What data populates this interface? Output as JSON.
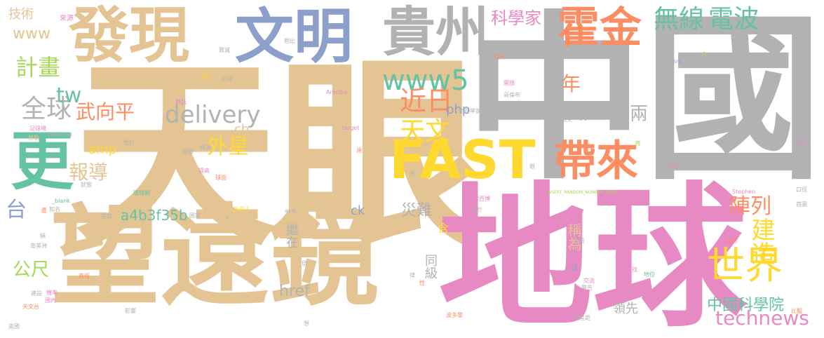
{
  "cloud": {
    "words": [
      {
        "text": "中國",
        "weight": 100,
        "color": "#b2b2b2"
      },
      {
        "text": "天眼",
        "weight": 96,
        "color": "#e5c494"
      },
      {
        "text": "地球",
        "weight": 78,
        "color": "#e78ac3"
      },
      {
        "text": "望遠鏡",
        "weight": 70,
        "color": "#e5c494"
      },
      {
        "text": "發現",
        "weight": 52,
        "color": "#e5c494"
      },
      {
        "text": "文明",
        "weight": 48,
        "color": "#8da0cb"
      },
      {
        "text": "貴州",
        "weight": 44,
        "color": "#b2b2b2"
      },
      {
        "text": "FAST",
        "weight": 40,
        "color": "#ffd92f"
      },
      {
        "text": "更",
        "weight": 42,
        "color": "#66c2a5"
      },
      {
        "text": "霍金",
        "weight": 30,
        "color": "#fc8d62"
      },
      {
        "text": "帶來",
        "weight": 28,
        "color": "#fc8d62"
      },
      {
        "text": "世界",
        "weight": 24,
        "color": "#ffd92f"
      },
      {
        "text": "無線",
        "weight": 18,
        "color": "#66c2a5"
      },
      {
        "text": "電波",
        "weight": 18,
        "color": "#66c2a5"
      },
      {
        "text": "www5",
        "weight": 16,
        "color": "#66c2a5"
      },
      {
        "text": "delivery",
        "weight": 16,
        "color": "#b2b2b2"
      },
      {
        "text": "近日",
        "weight": 16,
        "color": "#fc8d62"
      },
      {
        "text": "天文",
        "weight": 15,
        "color": "#ffd92f"
      },
      {
        "text": "全球",
        "weight": 15,
        "color": "#b2b2b2"
      },
      {
        "text": "technews",
        "weight": 14,
        "color": "#e78ac3"
      },
      {
        "text": "建造",
        "weight": 14,
        "color": "#ffd92f"
      },
      {
        "text": "陣列",
        "weight": 12,
        "color": "#fc8d62"
      },
      {
        "text": "外星",
        "weight": 12,
        "color": "#ffd92f"
      },
      {
        "text": "年",
        "weight": 12,
        "color": "#fc8d62"
      },
      {
        "text": "科學家",
        "weight": 12,
        "color": "#e78ac3"
      },
      {
        "text": "計畫",
        "weight": 12,
        "color": "#a6d854"
      },
      {
        "text": "www",
        "weight": 11,
        "color": "#e5c494"
      },
      {
        "text": "tw",
        "weight": 12,
        "color": "#66c2a5"
      },
      {
        "text": "武向平",
        "weight": 12,
        "color": "#fc8d62"
      },
      {
        "text": "報導",
        "weight": 11,
        "color": "#e5c494"
      },
      {
        "text": "公尺",
        "weight": 11,
        "color": "#a6d854"
      },
      {
        "text": "台",
        "weight": 12,
        "color": "#8da0cb"
      },
      {
        "text": "技術",
        "weight": 9,
        "color": "#e5c494"
      },
      {
        "text": "中國科學院",
        "weight": 10,
        "color": "#66c2a5"
      },
      {
        "text": "兩",
        "weight": 11,
        "color": "#b2b2b2"
      },
      {
        "text": "稱為",
        "weight": 9,
        "color": "#e5c494"
      },
      {
        "text": "災難",
        "weight": 10,
        "color": "#b2b2b2"
      },
      {
        "text": "a4b3f35b",
        "weight": 10,
        "color": "#66c2a5"
      },
      {
        "text": "href",
        "weight": 10,
        "color": "#b2b2b2"
      },
      {
        "text": "php",
        "weight": 9,
        "color": "#8da0cb"
      },
      {
        "text": "n",
        "weight": 9,
        "color": "#b2b2b2"
      },
      {
        "text": "cb",
        "weight": 9,
        "color": "#e5c494"
      },
      {
        "text": "amp",
        "weight": 9,
        "color": "#ffd92f"
      },
      {
        "text": "ck",
        "weight": 9,
        "color": "#8da0cb"
      },
      {
        "text": "同級",
        "weight": 9,
        "color": "#b2b2b2"
      },
      {
        "text": "領先",
        "weight": 9,
        "color": "#b2b2b2"
      },
      {
        "text": "繼在",
        "weight": 8,
        "color": "#b2b2b2"
      },
      {
        "text": "含",
        "weight": 8,
        "color": "#ffd92f"
      },
      {
        "text": "a",
        "weight": 8,
        "color": "#8da0cb"
      },
      {
        "text": "來源",
        "weight": 4,
        "color": "#e78ac3"
      },
      {
        "text": "致滅",
        "weight": 4,
        "color": "#b2b2b2"
      },
      {
        "text": "相比",
        "weight": 4,
        "color": "#b2b2b2"
      },
      {
        "text": "少年",
        "weight": 4,
        "color": "#b2b2b2"
      },
      {
        "text": "院士",
        "weight": 5,
        "color": "#ffd92f"
      },
      {
        "text": "對話",
        "weight": 4,
        "color": "#e78ac3"
      },
      {
        "text": "Arecibo",
        "weight": 4,
        "color": "#e78ac3"
      },
      {
        "text": "開放",
        "weight": 4,
        "color": "#e78ac3"
      },
      {
        "text": "哥倫布",
        "weight": 4,
        "color": "#b2b2b2"
      },
      {
        "text": "提升",
        "weight": 4,
        "color": "#fc8d62"
      },
      {
        "text": "src",
        "weight": 4,
        "color": "#8da0cb"
      },
      {
        "text": "全",
        "weight": 4,
        "color": "#a6d854"
      },
      {
        "text": "物理學家",
        "weight": 4,
        "color": "#b2b2b2"
      },
      {
        "text": "頂尖",
        "weight": 4,
        "color": "#b2b2b2"
      },
      {
        "text": "足球場",
        "weight": 4,
        "color": "#e78ac3"
      },
      {
        "text": "Hawking",
        "weight": 4,
        "color": "#b2b2b2"
      },
      {
        "text": "啟動",
        "weight": 4,
        "color": "#e5c494"
      },
      {
        "text": "target",
        "weight": 4,
        "color": "#e78ac3"
      },
      {
        "text": "低於",
        "weight": 4,
        "color": "#b2b2b2"
      },
      {
        "text": "面積",
        "weight": 4,
        "color": "#b2b2b2"
      },
      {
        "text": "資源",
        "weight": 4,
        "color": "#b2b2b2"
      },
      {
        "text": "達",
        "weight": 4,
        "color": "#fc8d62"
      },
      {
        "text": "約",
        "weight": 4,
        "color": "#b2b2b2"
      },
      {
        "text": "眼",
        "weight": 4,
        "color": "#b2b2b2"
      },
      {
        "text": "將",
        "weight": 4,
        "color": "#a6d854"
      },
      {
        "text": "探索",
        "weight": 4,
        "color": "#e78ac3"
      },
      {
        "text": "已故",
        "weight": 4,
        "color": "#b2b2b2"
      },
      {
        "text": "野心",
        "weight": 4,
        "color": "#e78ac3"
      },
      {
        "text": "提高",
        "weight": 4,
        "color": "#e78ac3"
      },
      {
        "text": "球面",
        "weight": 4,
        "color": "#fc8d62"
      },
      {
        "text": "狀態",
        "weight": 4,
        "color": "#b2b2b2"
      },
      {
        "text": "環球網",
        "weight": 4,
        "color": "#66c2a5"
      },
      {
        "text": "阿雷西博",
        "weight": 4,
        "color": "#e78ac3"
      },
      {
        "text": "INSERT_RANDOM_NUMBER_HERE",
        "weight": 4,
        "color": "#a6d854"
      },
      {
        "text": "Stephen",
        "weight": 4,
        "color": "#e78ac3"
      },
      {
        "text": "口徑",
        "weight": 4,
        "color": "#b2b2b2"
      },
      {
        "text": "_blank",
        "weight": 4,
        "color": "#66c2a5"
      },
      {
        "text": "知名",
        "weight": 4,
        "color": "#b2b2b2"
      },
      {
        "text": "遭",
        "weight": 4,
        "color": "#fc8d62"
      },
      {
        "text": "官媒",
        "weight": 4,
        "color": "#b2b2b2"
      },
      {
        "text": "國家",
        "weight": 4,
        "color": "#b2b2b2"
      },
      {
        "text": "外星人",
        "weight": 4,
        "color": "#ffd92f"
      },
      {
        "text": "p",
        "weight": 4,
        "color": "#b2b2b2"
      },
      {
        "text": "高於",
        "weight": 4,
        "color": "#b2b2b2"
      },
      {
        "text": "首圖",
        "weight": 4,
        "color": "#b2b2b2"
      },
      {
        "text": "稱",
        "weight": 4,
        "color": "#b2b2b2"
      },
      {
        "text": "南美洲",
        "weight": 4,
        "color": "#b2b2b2"
      },
      {
        "text": "img",
        "weight": 4,
        "color": "#e78ac3"
      },
      {
        "text": "公開",
        "weight": 4,
        "color": "#b2b2b2"
      },
      {
        "text": "英才",
        "weight": 4,
        "color": "#fc8d62"
      },
      {
        "text": "倍",
        "weight": 4,
        "color": "#b2b2b2"
      },
      {
        "text": "直徑",
        "weight": 4,
        "color": "#fc8d62"
      },
      {
        "text": "交流",
        "weight": 4,
        "color": "#e78ac3"
      },
      {
        "text": "尋找",
        "weight": 4,
        "color": "#e78ac3"
      },
      {
        "text": "警告",
        "weight": 4,
        "color": "#b2b2b2"
      },
      {
        "text": "地位",
        "weight": 4,
        "color": "#66c2a5"
      },
      {
        "text": "建設",
        "weight": 4,
        "color": "#b2b2b2"
      },
      {
        "text": "機率",
        "weight": 4,
        "color": "#e78ac3"
      },
      {
        "text": "天文台",
        "weight": 4,
        "color": "#fc8d62"
      },
      {
        "text": "國內",
        "weight": 4,
        "color": "#e78ac3"
      },
      {
        "text": "影響",
        "weight": 4,
        "color": "#b2b2b2"
      },
      {
        "text": "比擬",
        "weight": 4,
        "color": "#fc8d62"
      },
      {
        "text": "英國",
        "weight": 4,
        "color": "#b2b2b2"
      },
      {
        "text": "想",
        "weight": 4,
        "color": "#b2b2b2"
      },
      {
        "text": "波多黎",
        "weight": 4,
        "color": "#fc8d62"
      },
      {
        "text": "相差距",
        "weight": 4,
        "color": "#b2b2b2"
      },
      {
        "text": "性",
        "weight": 4,
        "color": "#fc8d62"
      },
      {
        "text": "律",
        "weight": 4,
        "color": "#b2b2b2"
      },
      {
        "text": "ayw",
        "weight": 4,
        "color": "#b2b2b2"
      }
    ]
  }
}
